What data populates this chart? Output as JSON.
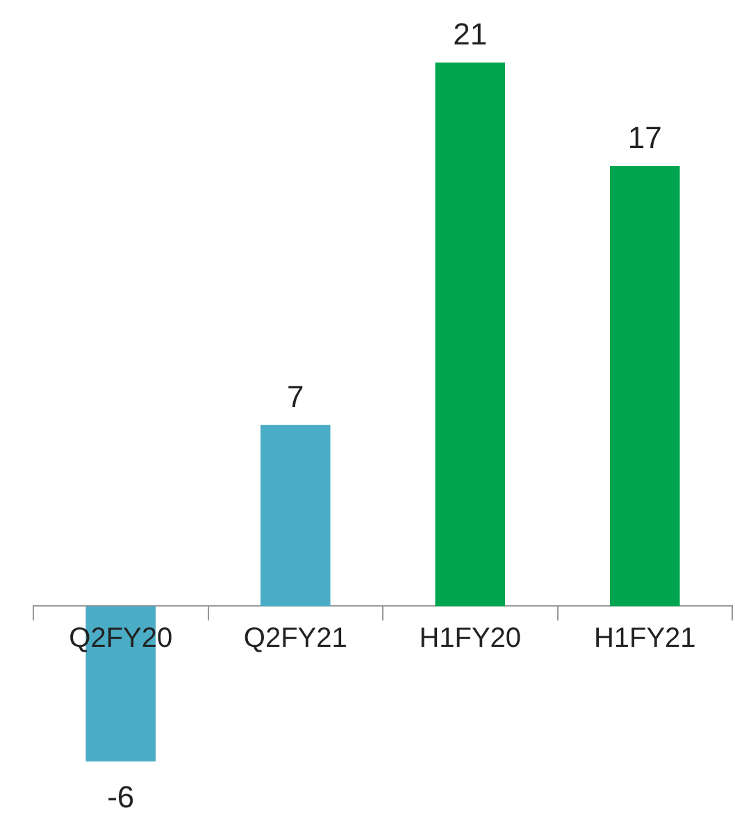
{
  "chart_data": {
    "type": "bar",
    "categories": [
      "Q2FY20",
      "Q2FY21",
      "H1FY20",
      "H1FY21"
    ],
    "values": [
      -6,
      7,
      21,
      17
    ],
    "colors": [
      "#4bacc6",
      "#4bacc6",
      "#00a64f",
      "#00a64f"
    ],
    "data_labels": true,
    "grid": false,
    "legend": false
  }
}
